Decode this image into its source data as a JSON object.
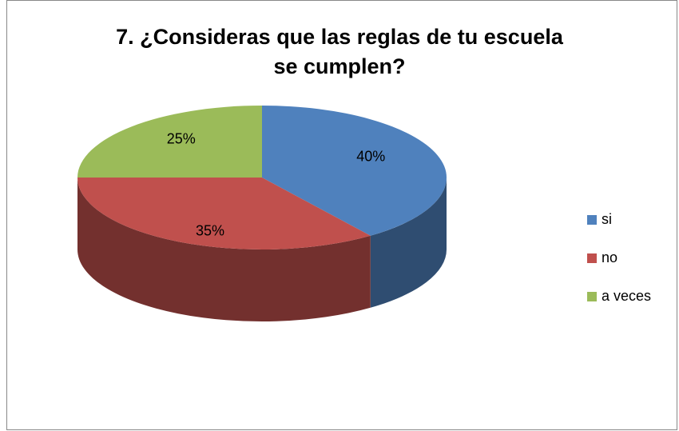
{
  "chart_data": {
    "type": "pie",
    "title": "7. ¿Consideras que las reglas de tu escuela se cumplen?",
    "categories": [
      "si",
      "no",
      "a veces"
    ],
    "values": [
      40,
      35,
      25
    ],
    "value_labels": [
      "40%",
      "35%",
      "25%"
    ],
    "colors": [
      "#4f81bd",
      "#c0504d",
      "#9bbb59"
    ],
    "legend": "right"
  }
}
